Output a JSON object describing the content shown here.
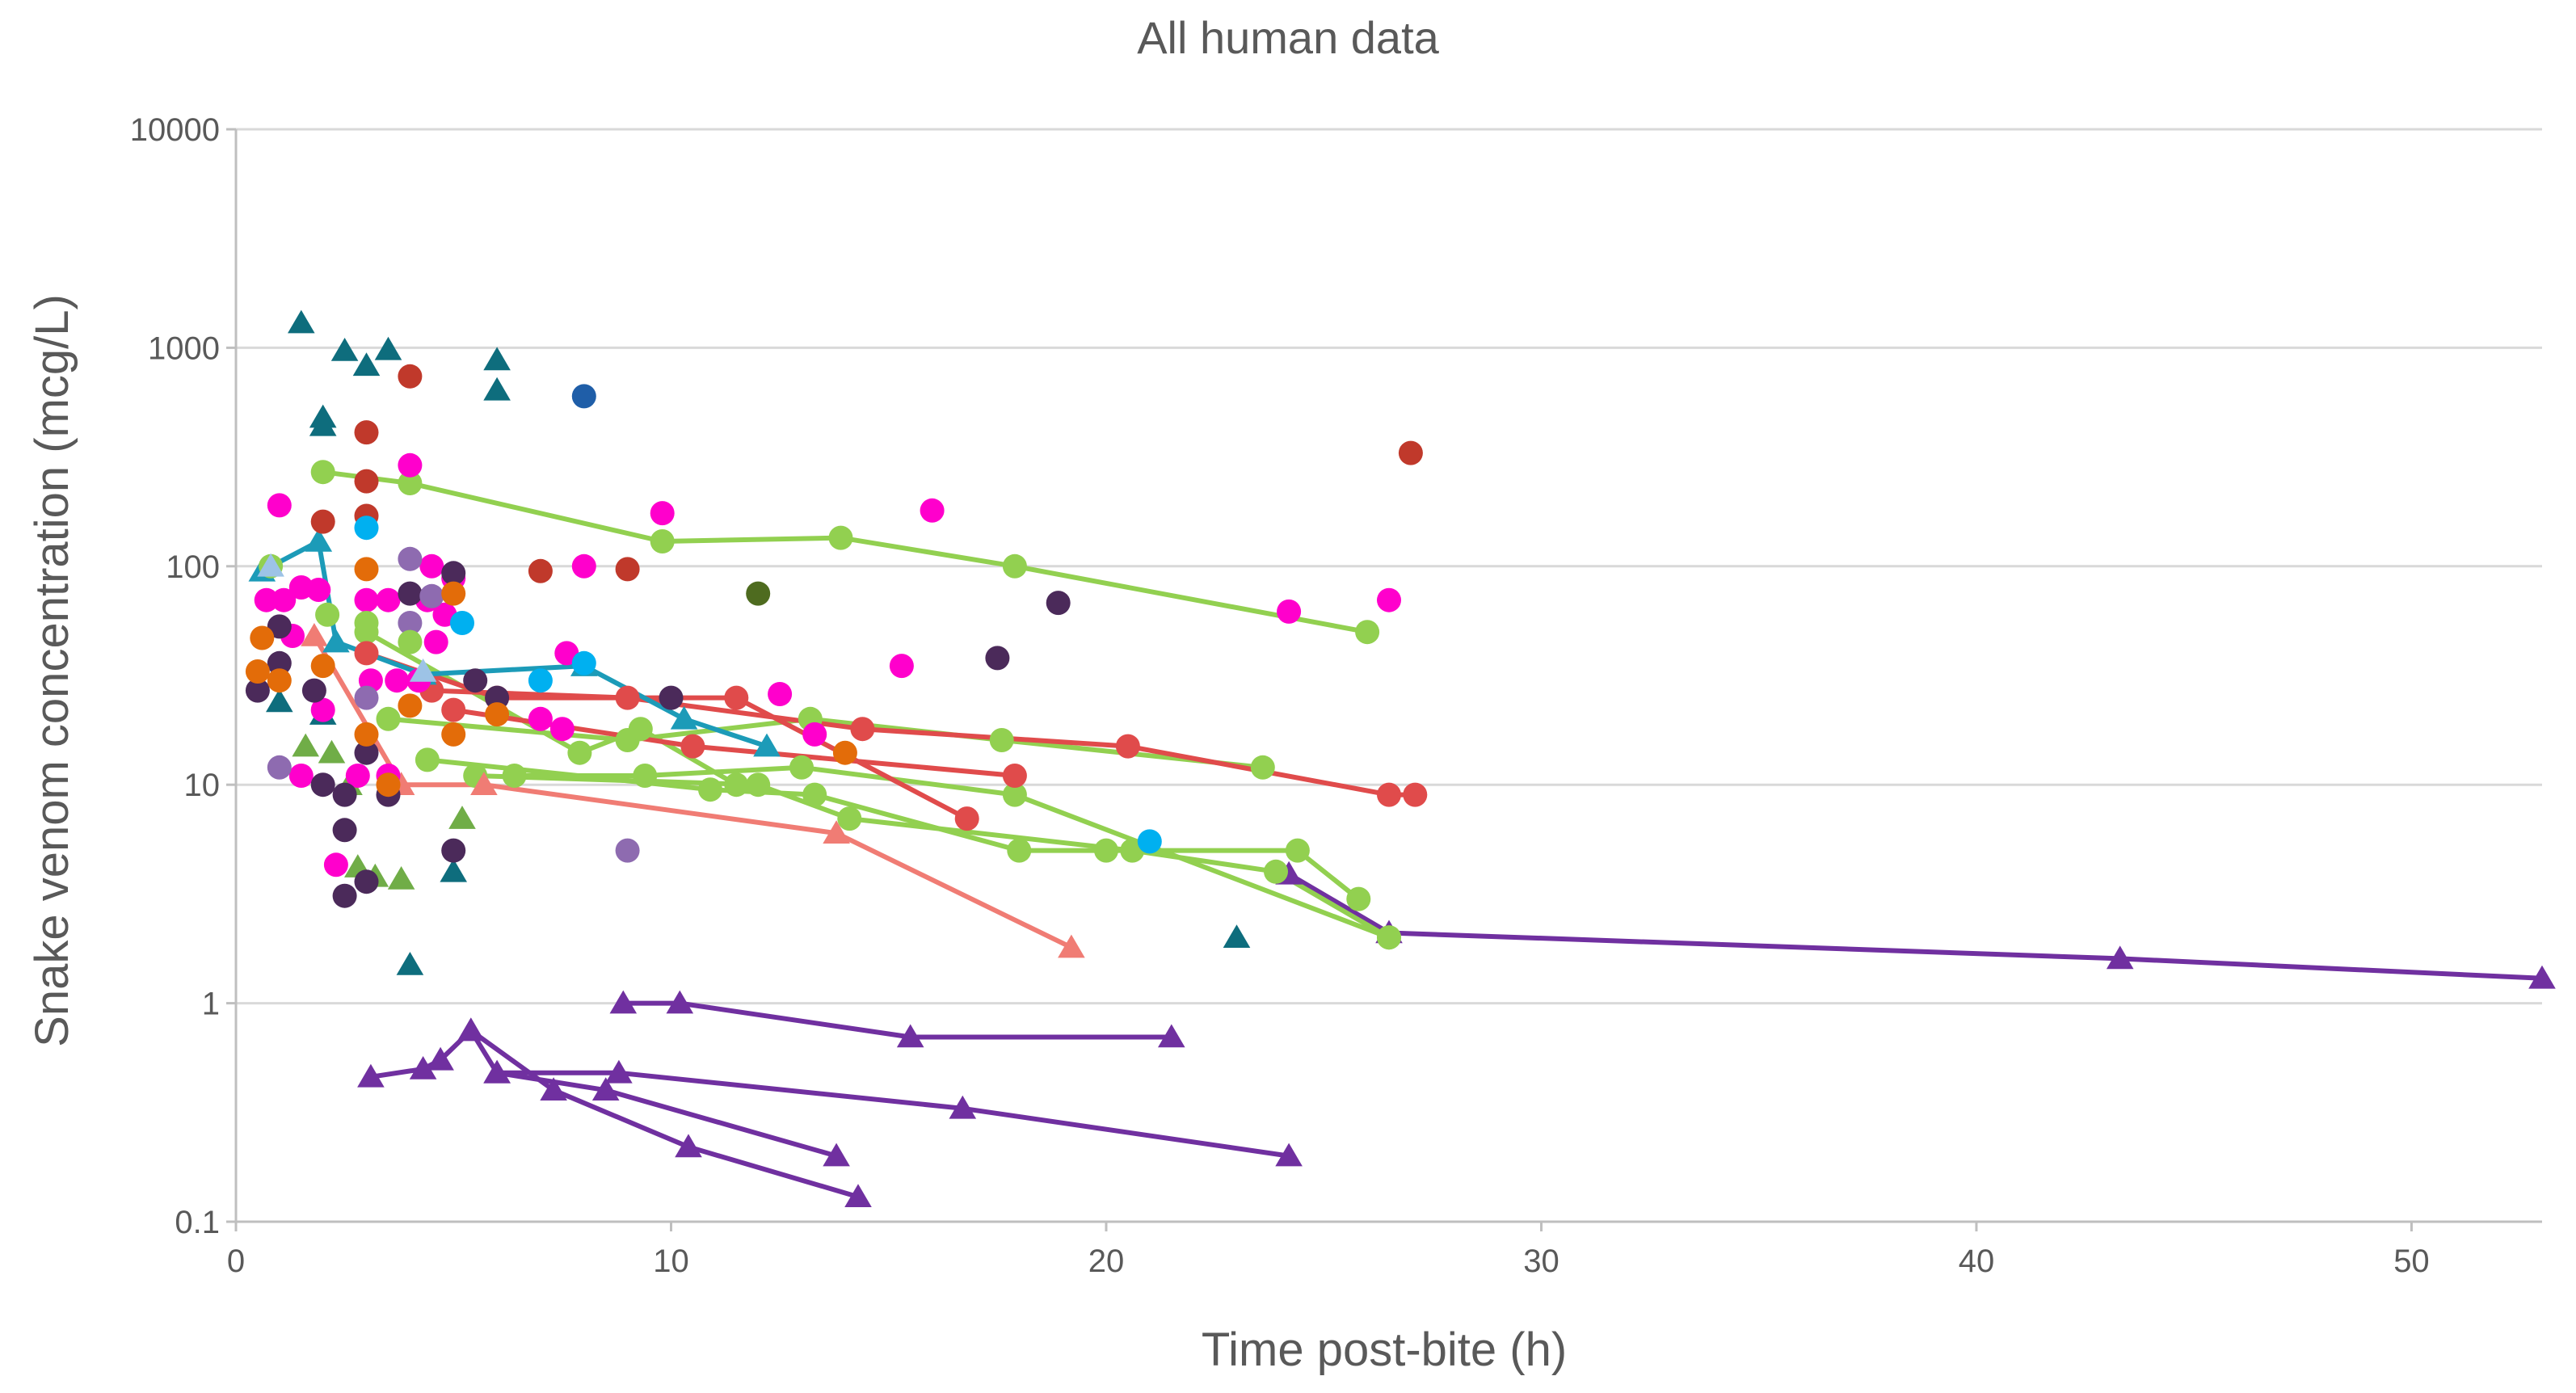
{
  "chart_data": {
    "type": "scatter",
    "title": "All human data",
    "xlabel": "Time post-bite (h)",
    "ylabel": "Snake venom concentration (mcg/L)",
    "xlim": [
      0,
      53
    ],
    "ylim": [
      0.1,
      10000
    ],
    "yscale": "log",
    "grid": "horizontal",
    "xticks": [
      0,
      10,
      20,
      30,
      40,
      50
    ],
    "yticks": [
      0.1,
      1,
      10,
      100,
      1000,
      10000
    ],
    "xtick_labels": [
      "0",
      "10",
      "20",
      "30",
      "40",
      "50"
    ],
    "ytick_labels": [
      "0.1",
      "1",
      "10",
      "100",
      "1000",
      "10000"
    ],
    "series": [
      {
        "name": "purple triangles upper",
        "color": "#7030a0",
        "marker": "triangle",
        "line": true,
        "points": [
          [
            24.2,
            3.9
          ],
          [
            26.5,
            2.1
          ],
          [
            43.3,
            1.6
          ],
          [
            53,
            1.3
          ]
        ]
      },
      {
        "name": "purple triangles A",
        "color": "#7030a0",
        "marker": "triangle",
        "line": true,
        "points": [
          [
            8.9,
            1.0
          ],
          [
            10.2,
            1.0
          ],
          [
            15.5,
            0.7
          ],
          [
            21.5,
            0.7
          ]
        ]
      },
      {
        "name": "purple triangles B",
        "color": "#7030a0",
        "marker": "triangle",
        "line": true,
        "points": [
          [
            3.1,
            0.46
          ],
          [
            4.3,
            0.5
          ],
          [
            4.7,
            0.55
          ],
          [
            5.4,
            0.75
          ],
          [
            6.0,
            0.48
          ],
          [
            8.8,
            0.48
          ],
          [
            16.7,
            0.33
          ],
          [
            24.2,
            0.2
          ]
        ]
      },
      {
        "name": "purple triangles C",
        "color": "#7030a0",
        "marker": "triangle",
        "line": true,
        "points": [
          [
            5.4,
            0.75
          ],
          [
            7.3,
            0.4
          ],
          [
            10.4,
            0.22
          ],
          [
            14.3,
            0.13
          ]
        ]
      },
      {
        "name": "purple triangles D",
        "color": "#7030a0",
        "marker": "triangle",
        "line": true,
        "points": [
          [
            6.0,
            0.48
          ],
          [
            8.5,
            0.4
          ],
          [
            13.8,
            0.2
          ]
        ]
      },
      {
        "name": "green 1",
        "color": "#92d050",
        "marker": "circle",
        "line": true,
        "points": [
          [
            2.0,
            270
          ],
          [
            4.0,
            240
          ],
          [
            9.8,
            130
          ],
          [
            13.9,
            135
          ],
          [
            17.9,
            100
          ],
          [
            26.0,
            50
          ]
        ]
      },
      {
        "name": "green 2",
        "color": "#92d050",
        "marker": "circle",
        "line": true,
        "points": [
          [
            3.5,
            20
          ],
          [
            9.0,
            16
          ],
          [
            13.2,
            20
          ],
          [
            17.6,
            16
          ],
          [
            23.6,
            12
          ]
        ]
      },
      {
        "name": "green 3",
        "color": "#92d050",
        "marker": "circle",
        "line": true,
        "points": [
          [
            4.4,
            13
          ],
          [
            10.9,
            9.5
          ],
          [
            13.3,
            9
          ],
          [
            18.0,
            5
          ],
          [
            20.0,
            5
          ],
          [
            24.4,
            5
          ],
          [
            25.8,
            3
          ]
        ]
      },
      {
        "name": "green 4",
        "color": "#92d050",
        "marker": "circle",
        "line": true,
        "points": [
          [
            5.5,
            11
          ],
          [
            12.0,
            10
          ],
          [
            14.1,
            7
          ],
          [
            20.6,
            5
          ],
          [
            23.9,
            4
          ],
          [
            26.5,
            2
          ]
        ]
      },
      {
        "name": "green 5",
        "color": "#92d050",
        "marker": "circle",
        "line": true,
        "points": [
          [
            6.4,
            11
          ],
          [
            9.4,
            11
          ],
          [
            13.0,
            12
          ],
          [
            17.9,
            9
          ],
          [
            26.5,
            2
          ]
        ]
      },
      {
        "name": "green 6",
        "color": "#92d050",
        "marker": "circle",
        "line": true,
        "points": [
          [
            3.0,
            50
          ],
          [
            7.9,
            14
          ],
          [
            9.3,
            18
          ],
          [
            11.5,
            10
          ]
        ]
      },
      {
        "name": "red 1",
        "color": "#e04b4b",
        "marker": "circle",
        "line": true,
        "points": [
          [
            3.0,
            40
          ],
          [
            6.0,
            25
          ],
          [
            11.5,
            25
          ],
          [
            16.8,
            7
          ]
        ]
      },
      {
        "name": "red 2",
        "color": "#e04b4b",
        "marker": "circle",
        "line": true,
        "points": [
          [
            4.5,
            27
          ],
          [
            9.0,
            25
          ],
          [
            14.4,
            18
          ],
          [
            20.5,
            15
          ],
          [
            26.5,
            9
          ],
          [
            27.1,
            9
          ]
        ]
      },
      {
        "name": "red 3",
        "color": "#e04b4b",
        "marker": "circle",
        "line": true,
        "points": [
          [
            5.0,
            22
          ],
          [
            10.5,
            15
          ],
          [
            17.9,
            11
          ]
        ]
      },
      {
        "name": "salmon triangles",
        "color": "#f07c74",
        "marker": "triangle",
        "line": true,
        "points": [
          [
            1.8,
            48
          ],
          [
            3.8,
            10
          ],
          [
            5.7,
            10
          ],
          [
            13.8,
            6
          ],
          [
            19.2,
            1.8
          ]
        ]
      },
      {
        "name": "teal triangles line",
        "color": "#1c9bb8",
        "marker": "triangle",
        "line": true,
        "points": [
          [
            0.6,
            95
          ],
          [
            1.9,
            130
          ],
          [
            2.3,
            45
          ],
          [
            4.3,
            32
          ],
          [
            8.0,
            35
          ],
          [
            10.3,
            20
          ],
          [
            12.2,
            15
          ]
        ]
      },
      {
        "name": "teal triangles scatter",
        "color": "#0e6d7d",
        "marker": "triangle",
        "line": false,
        "points": [
          [
            1.5,
            1300
          ],
          [
            2.0,
            480
          ],
          [
            2.0,
            440
          ],
          [
            2.5,
            970
          ],
          [
            3.0,
            830
          ],
          [
            3.5,
            980
          ],
          [
            6.0,
            880
          ],
          [
            6.0,
            640
          ],
          [
            1.0,
            24
          ],
          [
            2.0,
            21
          ],
          [
            4.0,
            1.5
          ],
          [
            5.0,
            4.0
          ],
          [
            23.0,
            2.0
          ]
        ]
      },
      {
        "name": "green triangles scatter",
        "color": "#70ad47",
        "marker": "triangle",
        "line": false,
        "points": [
          [
            1.6,
            15
          ],
          [
            2.2,
            14
          ],
          [
            2.6,
            10
          ],
          [
            2.8,
            4.2
          ],
          [
            3.2,
            3.8
          ],
          [
            3.8,
            3.7
          ],
          [
            5.2,
            7
          ]
        ]
      },
      {
        "name": "magenta",
        "color": "#ff00cc",
        "marker": "circle",
        "line": false,
        "points": [
          [
            0.7,
            70
          ],
          [
            1.0,
            190
          ],
          [
            1.1,
            70
          ],
          [
            1.3,
            48
          ],
          [
            1.5,
            80
          ],
          [
            1.5,
            11
          ],
          [
            1.9,
            78
          ],
          [
            2.0,
            22
          ],
          [
            2.3,
            4.3
          ],
          [
            2.8,
            11
          ],
          [
            3.0,
            70
          ],
          [
            3.1,
            30
          ],
          [
            3.5,
            70
          ],
          [
            3.5,
            11
          ],
          [
            3.7,
            30
          ],
          [
            4.0,
            290
          ],
          [
            4.2,
            30
          ],
          [
            4.4,
            70
          ],
          [
            4.5,
            100
          ],
          [
            4.6,
            45
          ],
          [
            4.8,
            60
          ],
          [
            5.0,
            88
          ],
          [
            7.0,
            20
          ],
          [
            7.5,
            18
          ],
          [
            7.6,
            40
          ],
          [
            8.0,
            100
          ],
          [
            9.8,
            175
          ],
          [
            12.5,
            26
          ],
          [
            13.3,
            17
          ],
          [
            15.3,
            35
          ],
          [
            16.0,
            180
          ],
          [
            24.2,
            62
          ],
          [
            26.5,
            70
          ]
        ]
      },
      {
        "name": "dark red",
        "color": "#c0392b",
        "marker": "circle",
        "line": false,
        "points": [
          [
            2.0,
            160
          ],
          [
            3.0,
            410
          ],
          [
            3.0,
            245
          ],
          [
            3.0,
            170
          ],
          [
            4.0,
            740
          ],
          [
            7.0,
            95
          ],
          [
            9.0,
            97
          ],
          [
            27.0,
            330
          ]
        ]
      },
      {
        "name": "dark purple",
        "color": "#4b2a5a",
        "marker": "circle",
        "line": false,
        "points": [
          [
            0.5,
            27
          ],
          [
            1.0,
            36
          ],
          [
            1.0,
            53
          ],
          [
            1.8,
            27
          ],
          [
            2.0,
            10
          ],
          [
            2.5,
            9
          ],
          [
            2.5,
            6.2
          ],
          [
            2.5,
            3.1
          ],
          [
            3.0,
            3.6
          ],
          [
            3.0,
            14
          ],
          [
            3.5,
            9
          ],
          [
            4.0,
            75
          ],
          [
            5.0,
            93
          ],
          [
            5.0,
            5
          ],
          [
            5.5,
            30
          ],
          [
            6.0,
            25
          ],
          [
            10.0,
            25
          ],
          [
            17.5,
            38
          ],
          [
            18.9,
            68
          ]
        ]
      },
      {
        "name": "lavender",
        "color": "#8e6bb0",
        "marker": "circle",
        "line": false,
        "points": [
          [
            1.0,
            12
          ],
          [
            3.0,
            25
          ],
          [
            4.0,
            108
          ],
          [
            4.0,
            55
          ],
          [
            4.5,
            73
          ],
          [
            9.0,
            5
          ]
        ]
      },
      {
        "name": "orange",
        "color": "#e36c09",
        "marker": "circle",
        "line": false,
        "points": [
          [
            0.5,
            33
          ],
          [
            0.6,
            47
          ],
          [
            1.0,
            30
          ],
          [
            2.0,
            35
          ],
          [
            3.0,
            97
          ],
          [
            3.0,
            17
          ],
          [
            3.5,
            10
          ],
          [
            4.0,
            23
          ],
          [
            5.0,
            17
          ],
          [
            5.0,
            75
          ],
          [
            6.0,
            21
          ],
          [
            14.0,
            14
          ]
        ]
      },
      {
        "name": "cyan",
        "color": "#00b0f0",
        "marker": "circle",
        "line": false,
        "points": [
          [
            3.0,
            150
          ],
          [
            5.2,
            55
          ],
          [
            7.0,
            30
          ],
          [
            8.0,
            36
          ],
          [
            21.0,
            5.5
          ]
        ]
      },
      {
        "name": "dark blue",
        "color": "#1f5ea8",
        "marker": "circle",
        "line": false,
        "points": [
          [
            8.0,
            600
          ]
        ]
      },
      {
        "name": "olive",
        "color": "#4e6b1f",
        "marker": "circle",
        "line": false,
        "points": [
          [
            12.0,
            75
          ]
        ]
      },
      {
        "name": "green circles scatter",
        "color": "#92d050",
        "marker": "circle",
        "line": false,
        "points": [
          [
            0.8,
            100
          ],
          [
            2.1,
            60
          ],
          [
            3.0,
            55
          ],
          [
            4.0,
            45
          ]
        ]
      },
      {
        "name": "light blue triangle",
        "color": "#9dc3e6",
        "marker": "triangle",
        "line": false,
        "points": [
          [
            0.8,
            100
          ],
          [
            4.3,
            33
          ]
        ]
      }
    ]
  }
}
